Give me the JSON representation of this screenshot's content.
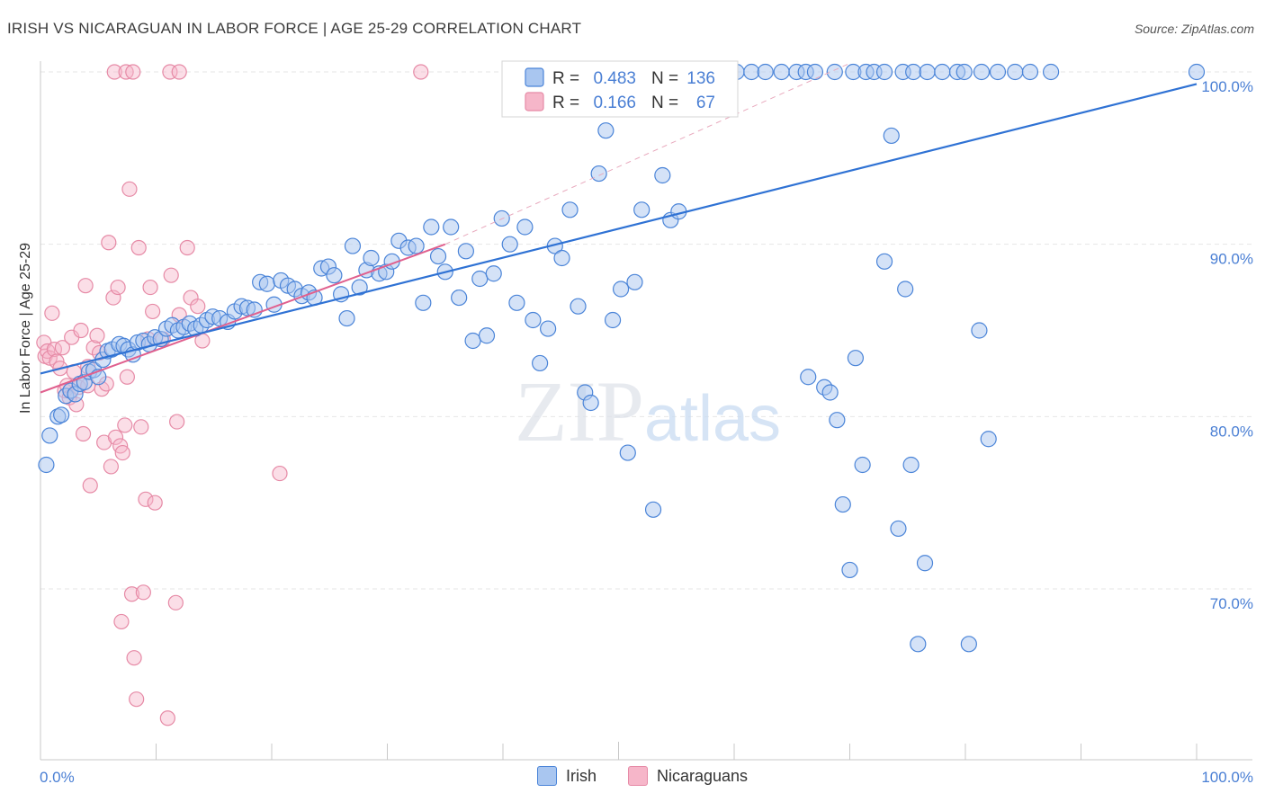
{
  "chart_data": {
    "type": "scatter",
    "title": "IRISH VS NICARAGUAN IN LABOR FORCE | AGE 25-29 CORRELATION CHART",
    "source": "Source: ZipAtlas.com",
    "xlabel": "",
    "ylabel": "In Labor Force | Age 25-29",
    "xlim": [
      0,
      100
    ],
    "ylim": [
      60.5,
      101
    ],
    "x_tick_labels": [
      "0.0%",
      "100.0%"
    ],
    "y_ticks": [
      70,
      80,
      90,
      100
    ],
    "y_tick_labels": [
      "70.0%",
      "80.0%",
      "90.0%",
      "100.0%"
    ],
    "watermark": "ZIPatlas",
    "legend": {
      "r_label": "R =",
      "n_label": "N =",
      "entries": [
        {
          "name": "Irish",
          "r": "0.483",
          "n": "136"
        },
        {
          "name": "Nicaraguans",
          "r": "0.166",
          "n": "67"
        }
      ]
    },
    "colors": {
      "irish_fill": "#a9c6f0",
      "irish_stroke": "#4a84d8",
      "irish_line": "#2f72d4",
      "nic_fill": "#f6b6c9",
      "nic_stroke": "#e68aa6",
      "nic_line": "#e0608e",
      "tick_text": "#4a7fd4",
      "grid": "#e6e6e6"
    },
    "series": [
      {
        "name": "Irish",
        "trend": {
          "x0": 0,
          "y0": 82.5,
          "x1": 100,
          "y1": 99.3
        },
        "points": [
          [
            0.5,
            77.2
          ],
          [
            0.8,
            78.9
          ],
          [
            1.5,
            80.0
          ],
          [
            1.8,
            80.1
          ],
          [
            2.2,
            81.2
          ],
          [
            2.6,
            81.5
          ],
          [
            3.0,
            81.3
          ],
          [
            3.4,
            81.9
          ],
          [
            3.8,
            82.0
          ],
          [
            4.2,
            82.6
          ],
          [
            4.6,
            82.7
          ],
          [
            5.0,
            82.3
          ],
          [
            5.4,
            83.3
          ],
          [
            5.8,
            83.8
          ],
          [
            6.2,
            83.9
          ],
          [
            6.8,
            84.2
          ],
          [
            7.2,
            84.1
          ],
          [
            7.6,
            83.9
          ],
          [
            8.0,
            83.6
          ],
          [
            8.4,
            84.3
          ],
          [
            8.9,
            84.4
          ],
          [
            9.4,
            84.2
          ],
          [
            9.9,
            84.6
          ],
          [
            10.4,
            84.5
          ],
          [
            10.9,
            85.1
          ],
          [
            11.4,
            85.3
          ],
          [
            11.9,
            85.0
          ],
          [
            12.4,
            85.2
          ],
          [
            12.9,
            85.4
          ],
          [
            13.4,
            85.1
          ],
          [
            13.9,
            85.3
          ],
          [
            14.4,
            85.6
          ],
          [
            14.9,
            85.8
          ],
          [
            15.5,
            85.7
          ],
          [
            16.2,
            85.5
          ],
          [
            16.8,
            86.1
          ],
          [
            17.4,
            86.4
          ],
          [
            17.9,
            86.3
          ],
          [
            18.5,
            86.2
          ],
          [
            19.0,
            87.8
          ],
          [
            19.6,
            87.7
          ],
          [
            20.2,
            86.5
          ],
          [
            20.8,
            87.9
          ],
          [
            21.4,
            87.6
          ],
          [
            22.0,
            87.4
          ],
          [
            22.6,
            87.0
          ],
          [
            23.2,
            87.2
          ],
          [
            23.7,
            86.9
          ],
          [
            24.3,
            88.6
          ],
          [
            24.9,
            88.7
          ],
          [
            25.4,
            88.2
          ],
          [
            26.0,
            87.1
          ],
          [
            26.5,
            85.7
          ],
          [
            27.0,
            89.9
          ],
          [
            27.6,
            87.5
          ],
          [
            28.2,
            88.5
          ],
          [
            28.6,
            89.2
          ],
          [
            29.3,
            88.3
          ],
          [
            29.9,
            88.4
          ],
          [
            30.4,
            89.0
          ],
          [
            31.0,
            90.2
          ],
          [
            31.8,
            89.8
          ],
          [
            32.5,
            89.9
          ],
          [
            33.1,
            86.6
          ],
          [
            33.8,
            91.0
          ],
          [
            34.4,
            89.3
          ],
          [
            35.0,
            88.4
          ],
          [
            35.5,
            91.0
          ],
          [
            36.2,
            86.9
          ],
          [
            36.8,
            89.6
          ],
          [
            37.4,
            84.4
          ],
          [
            38.0,
            88.0
          ],
          [
            38.6,
            84.7
          ],
          [
            39.2,
            88.3
          ],
          [
            39.9,
            91.5
          ],
          [
            40.6,
            90.0
          ],
          [
            41.2,
            86.6
          ],
          [
            41.9,
            91.0
          ],
          [
            42.6,
            85.6
          ],
          [
            43.2,
            83.1
          ],
          [
            43.9,
            85.1
          ],
          [
            44.5,
            89.9
          ],
          [
            45.1,
            89.2
          ],
          [
            45.8,
            92.0
          ],
          [
            46.5,
            86.4
          ],
          [
            47.1,
            81.4
          ],
          [
            47.6,
            80.8
          ],
          [
            48.3,
            94.1
          ],
          [
            48.9,
            96.6
          ],
          [
            49.5,
            85.6
          ],
          [
            50.2,
            87.4
          ],
          [
            50.8,
            77.9
          ],
          [
            51.4,
            87.8
          ],
          [
            52.0,
            92.0
          ],
          [
            53.0,
            74.6
          ],
          [
            53.8,
            94.0
          ],
          [
            54.5,
            91.4
          ],
          [
            55.2,
            91.9
          ],
          [
            66.4,
            82.3
          ],
          [
            67.8,
            81.7
          ],
          [
            68.3,
            81.4
          ],
          [
            68.9,
            79.8
          ],
          [
            69.4,
            74.9
          ],
          [
            70.0,
            71.1
          ],
          [
            70.5,
            83.4
          ],
          [
            71.1,
            77.2
          ],
          [
            73.0,
            89.0
          ],
          [
            73.6,
            96.3
          ],
          [
            74.2,
            73.5
          ],
          [
            74.8,
            87.4
          ],
          [
            75.3,
            77.2
          ],
          [
            75.9,
            66.8
          ],
          [
            76.5,
            71.5
          ],
          [
            80.3,
            66.8
          ],
          [
            81.2,
            85.0
          ],
          [
            82.0,
            78.7
          ],
          [
            49.2,
            100.0
          ],
          [
            50.0,
            100.0
          ],
          [
            51.5,
            100.0
          ],
          [
            52.6,
            100.0
          ],
          [
            53.4,
            100.0
          ],
          [
            54.3,
            100.0
          ],
          [
            55.1,
            100.0
          ],
          [
            56.2,
            100.0
          ],
          [
            57.3,
            100.0
          ],
          [
            58.8,
            100.0
          ],
          [
            60.2,
            100.0
          ],
          [
            61.5,
            100.0
          ],
          [
            62.7,
            100.0
          ],
          [
            64.1,
            100.0
          ],
          [
            65.4,
            100.0
          ],
          [
            66.2,
            100.0
          ],
          [
            67.0,
            100.0
          ],
          [
            68.7,
            100.0
          ],
          [
            70.3,
            100.0
          ],
          [
            71.4,
            100.0
          ],
          [
            72.1,
            100.0
          ],
          [
            73.0,
            100.0
          ],
          [
            74.6,
            100.0
          ],
          [
            75.5,
            100.0
          ],
          [
            76.7,
            100.0
          ],
          [
            78.0,
            100.0
          ],
          [
            79.3,
            100.0
          ],
          [
            79.9,
            100.0
          ],
          [
            81.4,
            100.0
          ],
          [
            82.8,
            100.0
          ],
          [
            84.3,
            100.0
          ],
          [
            85.6,
            100.0
          ],
          [
            87.4,
            100.0
          ],
          [
            100.0,
            100.0
          ]
        ]
      },
      {
        "name": "Nicaraguans",
        "trend": {
          "x0": 0,
          "y0": 81.4,
          "x1": 35,
          "y1": 90.0
        },
        "trend_dashed": {
          "x0": 35,
          "y0": 90.0,
          "x1": 70,
          "y1": 100.5
        },
        "points": [
          [
            0.3,
            84.3
          ],
          [
            0.4,
            83.5
          ],
          [
            0.6,
            83.8
          ],
          [
            0.8,
            83.4
          ],
          [
            1.0,
            86.0
          ],
          [
            1.2,
            83.9
          ],
          [
            1.4,
            83.2
          ],
          [
            1.7,
            82.8
          ],
          [
            1.9,
            84.0
          ],
          [
            2.1,
            81.5
          ],
          [
            2.3,
            81.8
          ],
          [
            2.5,
            81.1
          ],
          [
            2.7,
            84.6
          ],
          [
            2.9,
            82.6
          ],
          [
            3.1,
            80.7
          ],
          [
            3.3,
            81.7
          ],
          [
            3.5,
            85.0
          ],
          [
            3.7,
            79.0
          ],
          [
            3.9,
            87.6
          ],
          [
            4.1,
            82.9
          ],
          [
            4.3,
            76.0
          ],
          [
            4.6,
            84.0
          ],
          [
            4.9,
            84.7
          ],
          [
            5.1,
            83.7
          ],
          [
            5.3,
            81.6
          ],
          [
            5.5,
            78.5
          ],
          [
            5.7,
            81.9
          ],
          [
            5.9,
            90.1
          ],
          [
            6.1,
            77.1
          ],
          [
            6.3,
            86.9
          ],
          [
            6.5,
            78.8
          ],
          [
            6.7,
            87.5
          ],
          [
            6.9,
            78.3
          ],
          [
            7.1,
            77.9
          ],
          [
            7.3,
            79.5
          ],
          [
            7.5,
            82.3
          ],
          [
            7.7,
            93.2
          ],
          [
            7.9,
            69.7
          ],
          [
            8.1,
            66.0
          ],
          [
            8.3,
            63.6
          ],
          [
            8.5,
            89.8
          ],
          [
            8.7,
            79.4
          ],
          [
            8.9,
            69.8
          ],
          [
            9.1,
            75.2
          ],
          [
            9.3,
            84.5
          ],
          [
            9.5,
            87.5
          ],
          [
            9.7,
            86.1
          ],
          [
            9.9,
            75.0
          ],
          [
            10.6,
            84.5
          ],
          [
            11.0,
            62.5
          ],
          [
            11.3,
            88.2
          ],
          [
            11.7,
            69.2
          ],
          [
            12.0,
            85.9
          ],
          [
            12.7,
            89.8
          ],
          [
            13.0,
            86.9
          ],
          [
            13.6,
            86.4
          ],
          [
            14.0,
            84.4
          ],
          [
            11.8,
            79.7
          ],
          [
            20.7,
            76.7
          ],
          [
            7.0,
            68.1
          ],
          [
            4.1,
            81.8
          ],
          [
            6.4,
            100.0
          ],
          [
            7.4,
            100.0
          ],
          [
            8.0,
            100.0
          ],
          [
            11.2,
            100.0
          ],
          [
            12.0,
            100.0
          ],
          [
            32.9,
            100.0
          ]
        ]
      }
    ]
  },
  "bottom_legend": [
    {
      "name": "Irish"
    },
    {
      "name": "Nicaraguans"
    }
  ]
}
